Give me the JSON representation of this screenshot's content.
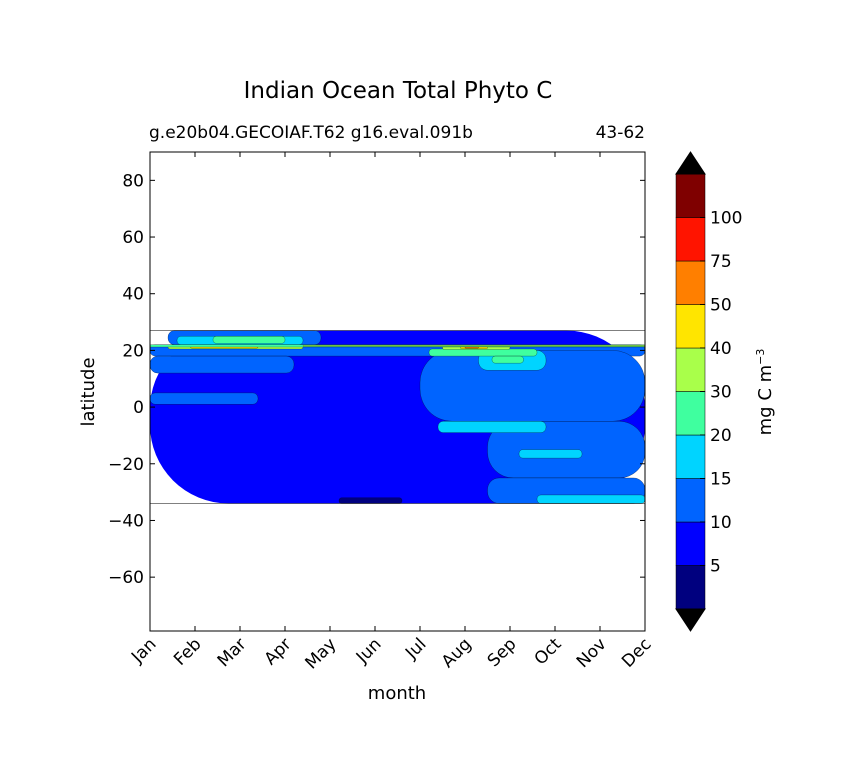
{
  "chart_data": {
    "type": "heatmap",
    "title": "Indian Ocean Total Phyto C",
    "subtitle_left": "g.e20b04.GECOIAF.T62 g16.eval.091b",
    "subtitle_right": "43-62",
    "xlabel": "month",
    "ylabel": "latitude",
    "x_categories": [
      "Jan",
      "Feb",
      "Mar",
      "Apr",
      "May",
      "Jun",
      "Jul",
      "Aug",
      "Sep",
      "Oct",
      "Nov",
      "Dec"
    ],
    "xlim": [
      0,
      11
    ],
    "y_ticks": [
      80,
      60,
      40,
      20,
      0,
      -20,
      -40,
      -60
    ],
    "y_tick_labels": [
      "80",
      "60",
      "40",
      "20",
      "0",
      "−20",
      "−40",
      "−60"
    ],
    "ylim": [
      -79,
      90
    ],
    "data_lat_range": [
      -34,
      27
    ],
    "colorbar": {
      "label": "mg C m",
      "label_exponent": "−3",
      "levels": [
        0,
        5,
        10,
        15,
        20,
        30,
        40,
        50,
        75,
        100,
        125
      ],
      "tick_values": [
        5,
        10,
        15,
        20,
        30,
        40,
        50,
        75,
        100
      ],
      "tick_labels": [
        "5",
        "10",
        "15",
        "20",
        "30",
        "40",
        "50",
        "75",
        "100"
      ],
      "colors": [
        "#00007f",
        "#0000ff",
        "#0064ff",
        "#00d4ff",
        "#3fff9f",
        "#a9ff4a",
        "#ffe500",
        "#ff7f00",
        "#ff1400",
        "#7f0000"
      ],
      "extend_low_color": "#000000",
      "extend_high_color": "#000000"
    },
    "contour_regions": [
      {
        "level": 1,
        "lat_min": -34,
        "lat_max": 27,
        "month_start": 0,
        "month_end": 11
      },
      {
        "level": 2,
        "lat_min": 18,
        "lat_max": 22,
        "month_start": 0,
        "month_end": 11
      },
      {
        "level": 2,
        "lat_min": 12,
        "lat_max": 18,
        "month_start": 0,
        "month_end": 3.2
      },
      {
        "level": 2,
        "lat_min": 1,
        "lat_max": 5,
        "month_start": 0,
        "month_end": 2.4
      },
      {
        "level": 2,
        "lat_min": -5,
        "lat_max": 20,
        "month_start": 6,
        "month_end": 11
      },
      {
        "level": 2,
        "lat_min": -25,
        "lat_max": -5,
        "month_start": 7.5,
        "month_end": 11
      },
      {
        "level": 2,
        "lat_min": -34,
        "lat_max": -25,
        "month_start": 7.5,
        "month_end": 11
      },
      {
        "level": 2,
        "lat_min": 22,
        "lat_max": 27,
        "month_start": 0.4,
        "month_end": 3.8
      },
      {
        "level": 3,
        "lat_min": 22,
        "lat_max": 25,
        "month_start": 0.6,
        "month_end": 3.4
      },
      {
        "level": 4,
        "lat_min": 22.5,
        "lat_max": 25,
        "month_start": 1.4,
        "month_end": 3.0
      },
      {
        "level": 3,
        "lat_min": 13,
        "lat_max": 20,
        "month_start": 7.3,
        "month_end": 8.8
      },
      {
        "level": 3,
        "lat_min": -9,
        "lat_max": -5,
        "month_start": 6.4,
        "month_end": 8.8
      },
      {
        "level": 3,
        "lat_min": -18,
        "lat_max": -15,
        "month_start": 8.2,
        "month_end": 9.6
      },
      {
        "level": 3,
        "lat_min": -34,
        "lat_max": -31,
        "month_start": 8.6,
        "month_end": 11
      },
      {
        "level": 4,
        "lat_min": 18,
        "lat_max": 20.5,
        "month_start": 6.2,
        "month_end": 8.6
      },
      {
        "level": 4,
        "lat_min": 15.5,
        "lat_max": 18,
        "month_start": 7.6,
        "month_end": 8.3
      },
      {
        "level": 0,
        "lat_min": -34,
        "lat_max": -32,
        "month_start": 4.2,
        "month_end": 5.6
      },
      {
        "level": 5,
        "lat_min": 20.5,
        "lat_max": 22,
        "month_start": 0.4,
        "month_end": 3.4
      },
      {
        "level": 6,
        "lat_min": 20.8,
        "lat_max": 21.8,
        "month_start": 0.9,
        "month_end": 2.4
      },
      {
        "level": 5,
        "lat_min": 20.3,
        "lat_max": 21.8,
        "month_start": 6.5,
        "month_end": 8.0
      },
      {
        "level": 6,
        "lat_min": 20.6,
        "lat_max": 21.4,
        "month_start": 6.9,
        "month_end": 7.5
      },
      {
        "level": 7,
        "lat_min": 20.8,
        "lat_max": 21.3,
        "month_start": 7.0,
        "month_end": 7.3
      },
      {
        "level": 4,
        "lat_min": 21.2,
        "lat_max": 22,
        "month_start": 0,
        "month_end": 11
      },
      {
        "level": 5,
        "lat_min": 21.4,
        "lat_max": 21.8,
        "month_start": 3.4,
        "month_end": 11
      }
    ]
  }
}
